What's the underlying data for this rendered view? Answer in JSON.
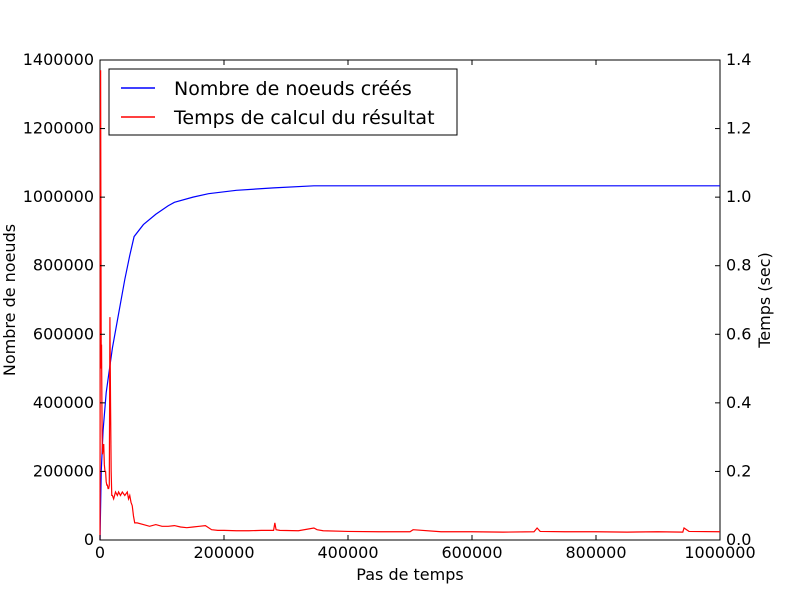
{
  "chart_data": {
    "type": "line",
    "title": "",
    "xlabel": "Pas de temps",
    "ylabel_left": "Nombre de noeuds",
    "ylabel_right": "Temps (sec)",
    "xlim": [
      0,
      1000000
    ],
    "ylim_left": [
      0,
      1400000
    ],
    "ylim_right": [
      0,
      1.4
    ],
    "x_ticks": [
      0,
      200000,
      400000,
      600000,
      800000,
      1000000
    ],
    "y_left_ticks": [
      0,
      200000,
      400000,
      600000,
      800000,
      1000000,
      1200000,
      1400000
    ],
    "y_right_ticks": [
      "0.0",
      "0.2",
      "0.4",
      "0.6",
      "0.8",
      "1.0",
      "1.2",
      "1.4"
    ],
    "grid": false,
    "legend_position": "top-left",
    "series": [
      {
        "name": "Nombre de noeuds créés",
        "axis": "left",
        "color": "#0000ff",
        "x": [
          0,
          2000,
          5000,
          10000,
          20000,
          30000,
          40000,
          48000,
          55000,
          70000,
          90000,
          110000,
          120000,
          150000,
          175000,
          220000,
          280000,
          345000,
          400000,
          600000,
          800000,
          1000000
        ],
        "y": [
          0,
          200000,
          320000,
          430000,
          560000,
          660000,
          760000,
          830000,
          885000,
          920000,
          950000,
          975000,
          985000,
          1000000,
          1010000,
          1020000,
          1027000,
          1033000,
          1033000,
          1033000,
          1033000,
          1033000
        ]
      },
      {
        "name": "Temps de calcul du résultat",
        "axis": "right",
        "color": "#ff0000",
        "x": [
          0,
          500,
          1000,
          1500,
          2000,
          2500,
          3000,
          3500,
          4000,
          5000,
          6000,
          7000,
          8000,
          9000,
          10000,
          11000,
          12000,
          13000,
          14000,
          15000,
          16000,
          17000,
          18000,
          19000,
          20000,
          22000,
          25000,
          28000,
          30000,
          33000,
          36000,
          40000,
          44000,
          46000,
          48000,
          50000,
          52000,
          54000,
          56000,
          60000,
          70000,
          80000,
          90000,
          100000,
          110000,
          120000,
          130000,
          140000,
          150000,
          160000,
          170000,
          180000,
          190000,
          200000,
          220000,
          240000,
          260000,
          280000,
          282000,
          284000,
          290000,
          320000,
          345000,
          350000,
          360000,
          400000,
          450000,
          500000,
          505000,
          550000,
          600000,
          650000,
          700000,
          705000,
          710000,
          750000,
          800000,
          850000,
          900000,
          940000,
          942000,
          950000,
          1000000
        ],
        "y": [
          0.0,
          1.05,
          1.37,
          0.9,
          0.5,
          0.57,
          0.42,
          0.3,
          0.25,
          0.27,
          0.28,
          0.22,
          0.2,
          0.2,
          0.17,
          0.16,
          0.16,
          0.15,
          0.15,
          0.16,
          0.65,
          0.4,
          0.2,
          0.13,
          0.13,
          0.12,
          0.14,
          0.13,
          0.14,
          0.13,
          0.14,
          0.13,
          0.14,
          0.12,
          0.13,
          0.11,
          0.1,
          0.07,
          0.05,
          0.05,
          0.045,
          0.04,
          0.045,
          0.04,
          0.04,
          0.042,
          0.038,
          0.036,
          0.038,
          0.04,
          0.042,
          0.03,
          0.028,
          0.028,
          0.027,
          0.027,
          0.028,
          0.028,
          0.05,
          0.03,
          0.028,
          0.027,
          0.035,
          0.03,
          0.027,
          0.025,
          0.024,
          0.024,
          0.03,
          0.024,
          0.024,
          0.023,
          0.024,
          0.035,
          0.025,
          0.024,
          0.024,
          0.023,
          0.024,
          0.023,
          0.035,
          0.025,
          0.024
        ]
      }
    ]
  }
}
